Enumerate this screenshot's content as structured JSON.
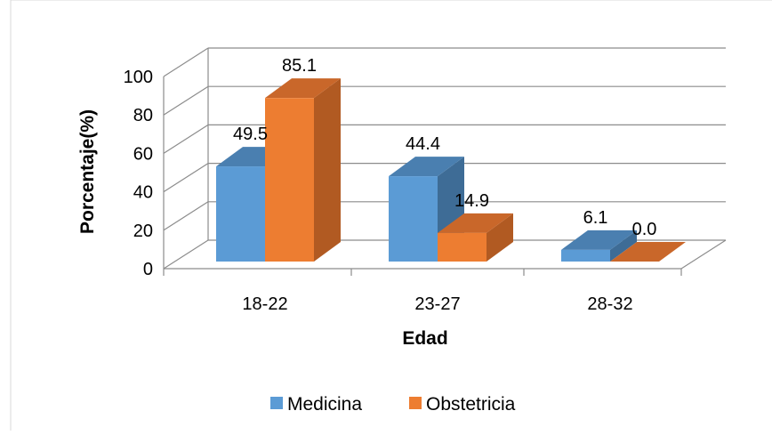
{
  "chart_data": {
    "type": "bar",
    "title": "",
    "xlabel": "Edad",
    "ylabel": "Porcentaje(%)",
    "ylim": [
      0,
      100
    ],
    "yticks": [
      "0",
      "20",
      "40",
      "60",
      "80",
      "100"
    ],
    "categories": [
      "18-22",
      "23-27",
      "28-32"
    ],
    "series": [
      {
        "name": "Medicina",
        "values": [
          49.5,
          44.4,
          6.1
        ],
        "labels": [
          "49.5",
          "44.4",
          "6.1"
        ]
      },
      {
        "name": "Obstetricia",
        "values": [
          85.1,
          14.9,
          0.0
        ],
        "labels": [
          "85.1",
          "14.9",
          "0.0"
        ]
      }
    ],
    "colors": {
      "Medicina": {
        "front": "#5b9bd5",
        "top": "#4a7fb0",
        "side": "#3e6c96"
      },
      "Obstetricia": {
        "front": "#ed7d31",
        "top": "#c9672a",
        "side": "#b15a22"
      },
      "grid": "#8c8c8c"
    },
    "grid": true,
    "style": "3d-clustered-column",
    "legend_position": "bottom"
  }
}
